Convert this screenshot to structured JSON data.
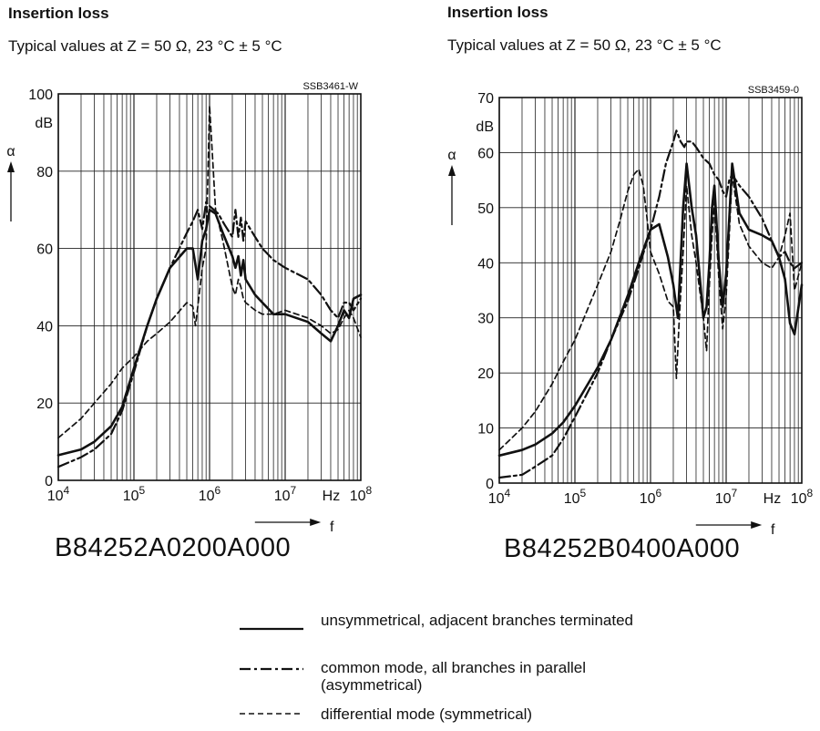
{
  "charts": [
    {
      "title": "Insertion loss",
      "subtitle": "Typical values at  Z = 50 Ω, 23 °C ± 5 °C",
      "code": "SSB3461-W",
      "part_number": "B84252A0200A000"
    },
    {
      "title": "Insertion loss",
      "subtitle": "Typical values at  Z = 50 Ω, 23 °C ± 5 °C",
      "code": "SSB3459-0",
      "part_number": "B84252B0400A000"
    }
  ],
  "legend": [
    {
      "text": "unsymmetrical, adjacent branches terminated",
      "style": "solid"
    },
    {
      "text": "common mode, all branches in parallel (asymmetrical)",
      "style": "dash-dot"
    },
    {
      "text": "differential mode (symmetrical)",
      "style": "dashed"
    }
  ],
  "chart_data": [
    {
      "type": "line",
      "xscale": "log",
      "xlim": [
        10000,
        100000000
      ],
      "ylim": [
        0,
        100
      ],
      "yticks": [
        0,
        20,
        40,
        60,
        80,
        100
      ],
      "xticks": [
        "10^4",
        "10^5",
        "10^6",
        "10^7",
        "10^8"
      ],
      "xunit": "Hz",
      "xlabel": "f",
      "ylabel": "α",
      "yunit": "dB",
      "grid": true,
      "series": [
        {
          "style": "solid",
          "x": [
            10000,
            20000,
            30000,
            50000,
            70000,
            100000,
            150000,
            200000,
            300000,
            500000,
            600000,
            700000,
            800000,
            900000,
            1000000,
            1200000,
            1500000,
            2000000,
            2200000,
            2400000,
            2600000,
            2800000,
            3000000,
            4000000,
            5000000,
            7000000,
            10000000,
            20000000,
            30000000,
            40000000,
            50000000,
            60000000,
            70000000,
            80000000,
            100000000
          ],
          "y": [
            6.5,
            8,
            10,
            14,
            19,
            29,
            40,
            47,
            55,
            60,
            60,
            52,
            62,
            65,
            70,
            69,
            64,
            58,
            55,
            58,
            53,
            57,
            52,
            48,
            46,
            43,
            43,
            41,
            38,
            36,
            40,
            44,
            42,
            47,
            48
          ]
        },
        {
          "style": "dash-dot",
          "x": [
            10000,
            20000,
            30000,
            50000,
            70000,
            100000,
            150000,
            200000,
            300000,
            500000,
            600000,
            700000,
            800000,
            900000,
            1000000,
            1300000,
            1600000,
            2000000,
            2200000,
            2400000,
            2600000,
            2800000,
            3000000,
            4000000,
            5000000,
            7000000,
            10000000,
            20000000,
            30000000,
            40000000,
            50000000,
            60000000,
            70000000,
            80000000,
            100000000
          ],
          "y": [
            3.5,
            6,
            8,
            12,
            18,
            28,
            40,
            47,
            55,
            64,
            67,
            70,
            65,
            72,
            71,
            69,
            66,
            63,
            70,
            63,
            68,
            62,
            67,
            63,
            60,
            57,
            55,
            52,
            48,
            44,
            42,
            46,
            46,
            44,
            47
          ]
        },
        {
          "style": "dashed",
          "x": [
            10000,
            20000,
            30000,
            50000,
            70000,
            100000,
            150000,
            200000,
            300000,
            500000,
            600000,
            650000,
            700000,
            800000,
            900000,
            1000000,
            1200000,
            1500000,
            2000000,
            2200000,
            2400000,
            2600000,
            2800000,
            3000000,
            4000000,
            5000000,
            7000000,
            10000000,
            20000000,
            30000000,
            40000000,
            50000000,
            60000000,
            70000000,
            80000000,
            100000000
          ],
          "y": [
            11,
            16,
            20,
            25,
            29,
            32,
            36,
            38,
            41,
            46,
            45,
            40,
            45,
            55,
            60,
            97,
            70,
            62,
            50,
            48,
            52,
            50,
            47,
            46,
            44,
            43,
            43,
            44,
            42,
            40,
            38,
            39,
            42,
            44,
            42,
            37
          ]
        }
      ]
    },
    {
      "type": "line",
      "xscale": "log",
      "xlim": [
        10000,
        100000000
      ],
      "ylim": [
        0,
        70
      ],
      "yticks": [
        0,
        10,
        20,
        30,
        40,
        50,
        60,
        70
      ],
      "xticks": [
        "10^4",
        "10^5",
        "10^6",
        "10^7",
        "10^8"
      ],
      "xunit": "Hz",
      "xlabel": "f",
      "ylabel": "α",
      "yunit": "dB",
      "grid": true,
      "series": [
        {
          "style": "solid",
          "x": [
            10000,
            20000,
            30000,
            50000,
            70000,
            100000,
            200000,
            300000,
            500000,
            700000,
            1000000,
            1300000,
            1700000,
            2000000,
            2300000,
            2700000,
            3000000,
            3500000,
            4000000,
            5000000,
            5500000,
            6000000,
            6500000,
            7000000,
            8000000,
            9000000,
            10000000,
            11000000,
            12000000,
            15000000,
            20000000,
            30000000,
            40000000,
            50000000,
            60000000,
            70000000,
            80000000,
            100000000
          ],
          "y": [
            5,
            6,
            7,
            9,
            11,
            14,
            21,
            26,
            34,
            40,
            46,
            47,
            41,
            36,
            30,
            50,
            58,
            50,
            45,
            30,
            32,
            40,
            50,
            54,
            40,
            32,
            38,
            48,
            58,
            49,
            46,
            45,
            44,
            41,
            37,
            29,
            27,
            36
          ]
        },
        {
          "style": "dash-dot",
          "x": [
            10000,
            20000,
            30000,
            50000,
            70000,
            100000,
            200000,
            300000,
            500000,
            700000,
            1000000,
            1300000,
            1600000,
            2000000,
            2200000,
            2500000,
            2800000,
            3000000,
            3500000,
            4000000,
            5000000,
            6000000,
            7000000,
            8000000,
            9000000,
            10000000,
            11000000,
            12000000,
            15000000,
            20000000,
            30000000,
            40000000,
            50000000,
            60000000,
            70000000,
            80000000,
            100000000
          ],
          "y": [
            1,
            1.5,
            3,
            5,
            8,
            12,
            20,
            26,
            33,
            39,
            46,
            52,
            58,
            62,
            64,
            62,
            61,
            62,
            62,
            61,
            59,
            58,
            56,
            55,
            53,
            52,
            55,
            56,
            54,
            52,
            48,
            44,
            41,
            42,
            40,
            39,
            40
          ]
        },
        {
          "style": "dashed",
          "x": [
            10000,
            20000,
            30000,
            50000,
            70000,
            100000,
            200000,
            300000,
            400000,
            500000,
            600000,
            700000,
            800000,
            900000,
            1000000,
            1300000,
            1700000,
            2000000,
            2200000,
            2400000,
            2700000,
            3000000,
            3500000,
            4000000,
            5000000,
            5500000,
            6000000,
            6500000,
            7000000,
            8000000,
            9000000,
            10000000,
            11000000,
            12000000,
            15000000,
            20000000,
            30000000,
            40000000,
            50000000,
            60000000,
            70000000,
            80000000,
            100000000
          ],
          "y": [
            6,
            10,
            13,
            18,
            22,
            26,
            36,
            42,
            48,
            53,
            56,
            57,
            54,
            48,
            42,
            38,
            33,
            32,
            19,
            30,
            42,
            54,
            45,
            40,
            30,
            24,
            36,
            45,
            51,
            37,
            28,
            34,
            45,
            56,
            47,
            43,
            40,
            39,
            41,
            45,
            49,
            35,
            40
          ]
        }
      ]
    }
  ]
}
